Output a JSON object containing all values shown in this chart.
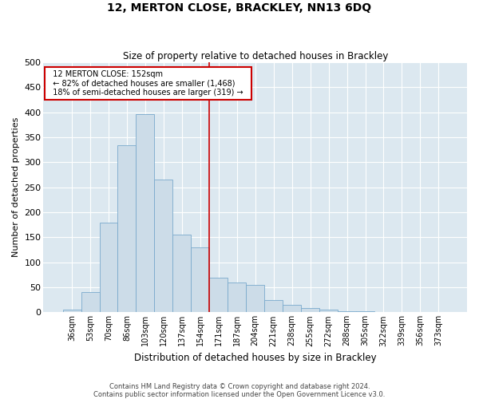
{
  "title": "12, MERTON CLOSE, BRACKLEY, NN13 6DQ",
  "subtitle": "Size of property relative to detached houses in Brackley",
  "xlabel": "Distribution of detached houses by size in Brackley",
  "ylabel": "Number of detached properties",
  "footer_line1": "Contains HM Land Registry data © Crown copyright and database right 2024.",
  "footer_line2": "Contains public sector information licensed under the Open Government Licence v3.0.",
  "categories": [
    "36sqm",
    "53sqm",
    "70sqm",
    "86sqm",
    "103sqm",
    "120sqm",
    "137sqm",
    "154sqm",
    "171sqm",
    "187sqm",
    "204sqm",
    "221sqm",
    "238sqm",
    "255sqm",
    "272sqm",
    "288sqm",
    "305sqm",
    "322sqm",
    "339sqm",
    "356sqm",
    "373sqm"
  ],
  "values": [
    5,
    40,
    180,
    335,
    397,
    265,
    155,
    130,
    70,
    60,
    55,
    25,
    15,
    8,
    5,
    3,
    2,
    1,
    0,
    1,
    1
  ],
  "bar_color": "#ccdce8",
  "bar_edge_color": "#7aaacc",
  "background_color": "#dce8f0",
  "grid_color": "#ffffff",
  "red_line_x": 7.5,
  "annotation_text_line1": "12 MERTON CLOSE: 152sqm",
  "annotation_text_line2": "← 82% of detached houses are smaller (1,468)",
  "annotation_text_line3": "18% of semi-detached houses are larger (319) →",
  "annotation_box_color": "#ffffff",
  "annotation_box_edge": "#cc0000",
  "ylim": [
    0,
    500
  ],
  "yticks": [
    0,
    50,
    100,
    150,
    200,
    250,
    300,
    350,
    400,
    450,
    500
  ]
}
